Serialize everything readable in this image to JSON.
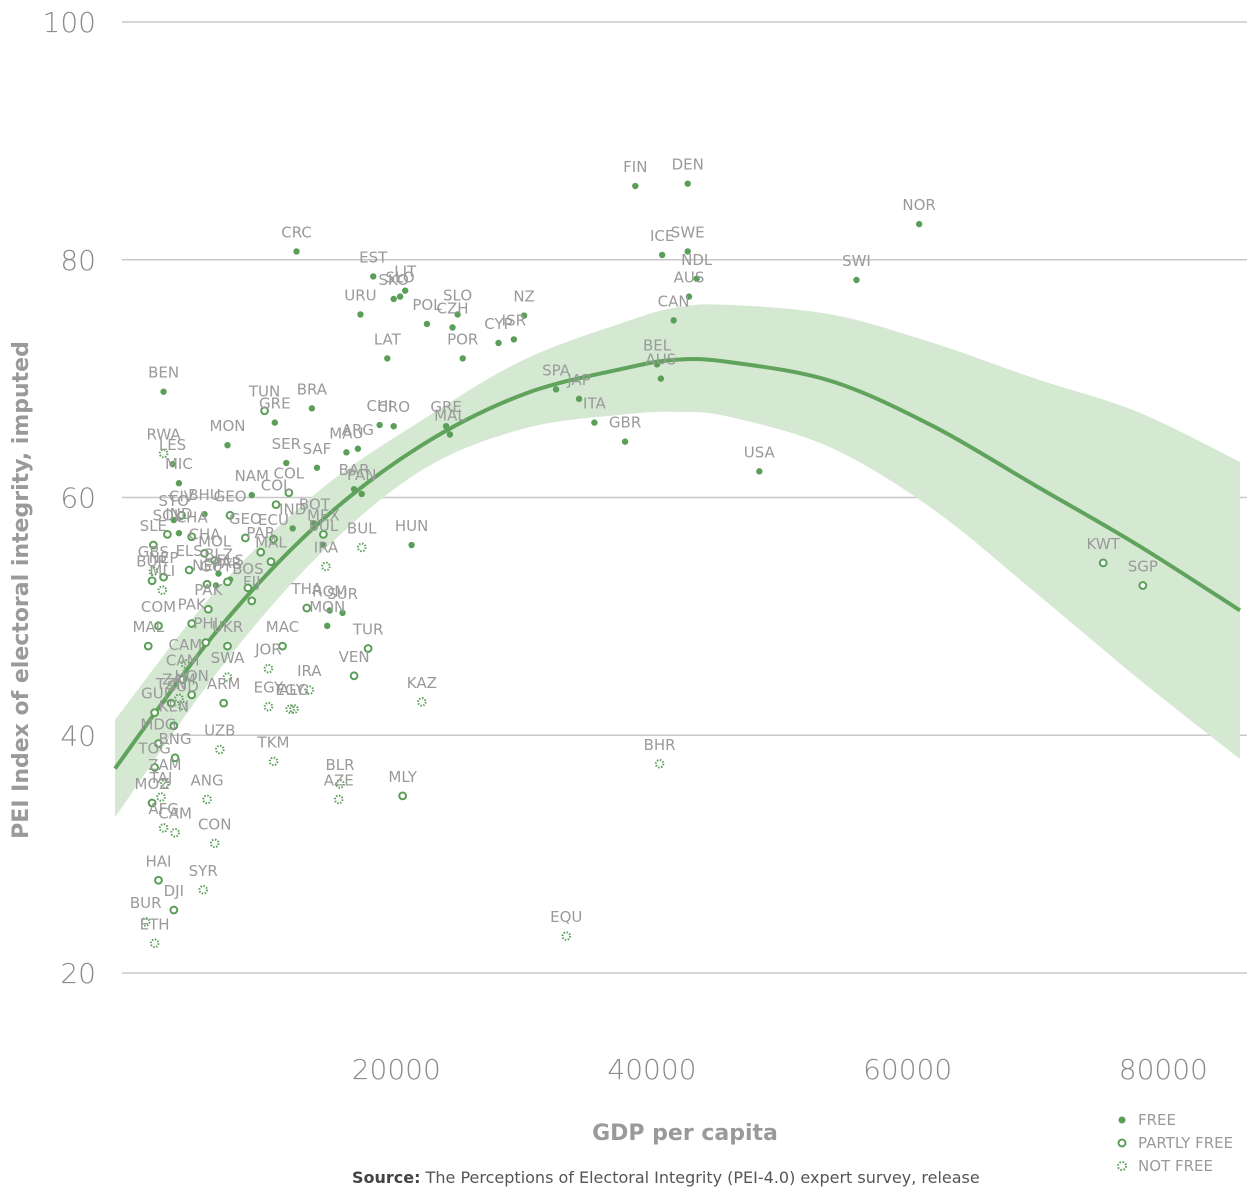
{
  "chart_data": {
    "type": "scatter",
    "title": "",
    "xlabel": "GDP per capita",
    "ylabel": "PEI Index of electoral integrity, imputed",
    "xlim": [
      -2000,
      86000
    ],
    "ylim": [
      20,
      100
    ],
    "x_ticks": [
      "20000",
      "40000",
      "60000",
      "80000"
    ],
    "y_ticks": [
      "20",
      "40",
      "60",
      "80",
      "100"
    ],
    "grid": "horizontal",
    "legend_position": "bottom-right",
    "legend": [
      {
        "name": "FREE",
        "marker": "filled"
      },
      {
        "name": "PARTLY FREE",
        "marker": "ring"
      },
      {
        "name": "NOT FREE",
        "marker": "dotted"
      }
    ],
    "colors": {
      "marker": "#5a9e58",
      "fit_line": "#5fa35c",
      "band": "#d4e8d2",
      "label": "#9a9a9a"
    },
    "fit": {
      "type": "quadratic",
      "x": [
        -2000,
        6000,
        14000,
        22000,
        30000,
        38000,
        42000,
        46000,
        54000,
        62000,
        70000,
        78000,
        86000
      ],
      "y": [
        37.2,
        48.8,
        57.9,
        64.4,
        68.7,
        70.9,
        71.6,
        71.4,
        69.8,
        66.0,
        61.0,
        56.0,
        50.5
      ],
      "lower": [
        33.1,
        45.3,
        55.2,
        62.3,
        65.8,
        67.0,
        67.2,
        66.8,
        64.2,
        59.0,
        52.0,
        44.8,
        38.0
      ],
      "upper": [
        41.3,
        52.3,
        60.6,
        66.5,
        71.6,
        74.8,
        76.0,
        76.2,
        75.4,
        73.0,
        70.0,
        67.2,
        63.0
      ]
    },
    "points": [
      {
        "label": "FIN",
        "x": 38700,
        "y": 86.2,
        "status": "free"
      },
      {
        "label": "DEN",
        "x": 42800,
        "y": 86.4,
        "status": "free"
      },
      {
        "label": "NOR",
        "x": 60900,
        "y": 83.0,
        "status": "free"
      },
      {
        "label": "CRC",
        "x": 12200,
        "y": 80.7,
        "status": "free"
      },
      {
        "label": "ICE",
        "x": 40800,
        "y": 80.4,
        "status": "free"
      },
      {
        "label": "SWE",
        "x": 42800,
        "y": 80.7,
        "status": "free"
      },
      {
        "label": "NDL",
        "x": 43500,
        "y": 78.4,
        "status": "free"
      },
      {
        "label": "SWI",
        "x": 56000,
        "y": 78.3,
        "status": "free"
      },
      {
        "label": "EST",
        "x": 18200,
        "y": 78.6,
        "status": "free"
      },
      {
        "label": "LIT",
        "x": 20700,
        "y": 77.4,
        "status": "free"
      },
      {
        "label": "SKO",
        "x": 19800,
        "y": 76.7,
        "status": "free"
      },
      {
        "label": "SLO",
        "x": 20300,
        "y": 76.9,
        "status": "free"
      },
      {
        "label": "AUS",
        "x": 42900,
        "y": 76.9,
        "status": "free"
      },
      {
        "label": "URU",
        "x": 17200,
        "y": 75.4,
        "status": "free"
      },
      {
        "label": "POL",
        "x": 22400,
        "y": 74.6,
        "status": "free"
      },
      {
        "label": "CZH",
        "x": 24400,
        "y": 74.3,
        "status": "free"
      },
      {
        "label": "NZ",
        "x": 30000,
        "y": 75.3,
        "status": "free"
      },
      {
        "label": "CAN",
        "x": 41700,
        "y": 74.9,
        "status": "free"
      },
      {
        "label": "SLO",
        "x": 24800,
        "y": 75.4,
        "status": "free"
      },
      {
        "label": "CYP",
        "x": 28000,
        "y": 73.0,
        "status": "free"
      },
      {
        "label": "ISR",
        "x": 29200,
        "y": 73.3,
        "status": "free"
      },
      {
        "label": "LAT",
        "x": 19300,
        "y": 71.7,
        "status": "free"
      },
      {
        "label": "POR",
        "x": 25200,
        "y": 71.7,
        "status": "free"
      },
      {
        "label": "BEL",
        "x": 40400,
        "y": 71.2,
        "status": "free"
      },
      {
        "label": "AUS",
        "x": 40700,
        "y": 70.0,
        "status": "free"
      },
      {
        "label": "SPA",
        "x": 32500,
        "y": 69.1,
        "status": "free"
      },
      {
        "label": "JAP",
        "x": 34300,
        "y": 68.3,
        "status": "free"
      },
      {
        "label": "BEN",
        "x": 1800,
        "y": 68.9,
        "status": "free"
      },
      {
        "label": "BRA",
        "x": 13400,
        "y": 67.5,
        "status": "free"
      },
      {
        "label": "TUN",
        "x": 9700,
        "y": 67.3,
        "status": "partly"
      },
      {
        "label": "GRE",
        "x": 10500,
        "y": 66.3,
        "status": "free"
      },
      {
        "label": "CHI",
        "x": 18700,
        "y": 66.1,
        "status": "free"
      },
      {
        "label": "CRO",
        "x": 19800,
        "y": 66.0,
        "status": "free"
      },
      {
        "label": "GRE",
        "x": 23900,
        "y": 66.0,
        "status": "free"
      },
      {
        "label": "ITA",
        "x": 35500,
        "y": 66.3,
        "status": "free"
      },
      {
        "label": "MAL",
        "x": 24200,
        "y": 65.3,
        "status": "free"
      },
      {
        "label": "GBR",
        "x": 37900,
        "y": 64.7,
        "status": "free"
      },
      {
        "label": "MON",
        "x": 6800,
        "y": 64.4,
        "status": "free"
      },
      {
        "label": "MAU",
        "x": 16100,
        "y": 63.8,
        "status": "free"
      },
      {
        "label": "ARG",
        "x": 17000,
        "y": 64.1,
        "status": "free"
      },
      {
        "label": "RWA",
        "x": 1800,
        "y": 63.7,
        "status": "dotted"
      },
      {
        "label": "SER",
        "x": 11400,
        "y": 62.9,
        "status": "free"
      },
      {
        "label": "SAF",
        "x": 13800,
        "y": 62.5,
        "status": "free"
      },
      {
        "label": "LES",
        "x": 2500,
        "y": 62.8,
        "status": "free"
      },
      {
        "label": "USA",
        "x": 48400,
        "y": 62.2,
        "status": "free"
      },
      {
        "label": "MIC",
        "x": 3000,
        "y": 61.2,
        "status": "free"
      },
      {
        "label": "BAR",
        "x": 16700,
        "y": 60.7,
        "status": "free"
      },
      {
        "label": "PAN",
        "x": 17300,
        "y": 60.3,
        "status": "free"
      },
      {
        "label": "NAM",
        "x": 8700,
        "y": 60.2,
        "status": "free"
      },
      {
        "label": "COL",
        "x": 11600,
        "y": 60.4,
        "status": "partly"
      },
      {
        "label": "COL",
        "x": 10600,
        "y": 59.4,
        "status": "partly"
      },
      {
        "label": "BHU",
        "x": 5000,
        "y": 58.6,
        "status": "free"
      },
      {
        "label": "GEO",
        "x": 7000,
        "y": 58.5,
        "status": "partly"
      },
      {
        "label": "CIV",
        "x": 3200,
        "y": 58.5,
        "status": "partly"
      },
      {
        "label": "STO",
        "x": 2600,
        "y": 58.1,
        "status": "free"
      },
      {
        "label": "BOT",
        "x": 13600,
        "y": 57.8,
        "status": "free"
      },
      {
        "label": "IND",
        "x": 3000,
        "y": 57.0,
        "status": "free"
      },
      {
        "label": "IND",
        "x": 11900,
        "y": 57.4,
        "status": "free"
      },
      {
        "label": "SOL",
        "x": 2100,
        "y": 56.9,
        "status": "partly"
      },
      {
        "label": "GEO",
        "x": 8200,
        "y": 56.6,
        "status": "partly"
      },
      {
        "label": "ECU",
        "x": 10400,
        "y": 56.5,
        "status": "partly"
      },
      {
        "label": "MEX",
        "x": 14300,
        "y": 56.9,
        "status": "partly"
      },
      {
        "label": "CHA",
        "x": 4000,
        "y": 56.7,
        "status": "partly"
      },
      {
        "label": "HUN",
        "x": 21200,
        "y": 56.0,
        "status": "free"
      },
      {
        "label": "BUL",
        "x": 14300,
        "y": 56.0,
        "status": "free"
      },
      {
        "label": "BUL",
        "x": 17300,
        "y": 55.8,
        "status": "dotted"
      },
      {
        "label": "SLE",
        "x": 1000,
        "y": 56.0,
        "status": "partly"
      },
      {
        "label": "CHA",
        "x": 5000,
        "y": 55.3,
        "status": "partly"
      },
      {
        "label": "PAR",
        "x": 9400,
        "y": 55.4,
        "status": "partly"
      },
      {
        "label": "MAL",
        "x": 10200,
        "y": 54.6,
        "status": "partly"
      },
      {
        "label": "IRA",
        "x": 14500,
        "y": 54.2,
        "status": "dotted"
      },
      {
        "label": "MOL",
        "x": 5800,
        "y": 54.7,
        "status": "partly"
      },
      {
        "label": "ELS",
        "x": 3800,
        "y": 53.9,
        "status": "partly"
      },
      {
        "label": "BLZ",
        "x": 6100,
        "y": 53.6,
        "status": "free"
      },
      {
        "label": "GBS",
        "x": 1000,
        "y": 53.8,
        "status": "dotted"
      },
      {
        "label": "NEP",
        "x": 1800,
        "y": 53.3,
        "status": "partly"
      },
      {
        "label": "BUR",
        "x": 900,
        "y": 53.0,
        "status": "partly"
      },
      {
        "label": "ELS",
        "x": 7000,
        "y": 53.1,
        "status": "free"
      },
      {
        "label": "PAR",
        "x": 6800,
        "y": 52.9,
        "status": "partly"
      },
      {
        "label": "NEP",
        "x": 5200,
        "y": 52.7,
        "status": "partly"
      },
      {
        "label": "BOS",
        "x": 8400,
        "y": 52.4,
        "status": "partly"
      },
      {
        "label": "MLI",
        "x": 1700,
        "y": 52.2,
        "status": "dotted"
      },
      {
        "label": "GUY",
        "x": 5900,
        "y": 52.6,
        "status": "free"
      },
      {
        "label": "FIJ",
        "x": 8700,
        "y": 51.3,
        "status": "partly"
      },
      {
        "label": "PAK",
        "x": 5300,
        "y": 50.6,
        "status": "partly"
      },
      {
        "label": "THA",
        "x": 13000,
        "y": 50.7,
        "status": "partly"
      },
      {
        "label": "ROM",
        "x": 14800,
        "y": 50.5,
        "status": "free"
      },
      {
        "label": "SUR",
        "x": 15800,
        "y": 50.3,
        "status": "free"
      },
      {
        "label": "MON",
        "x": 14600,
        "y": 49.2,
        "status": "free"
      },
      {
        "label": "PAK",
        "x": 4000,
        "y": 49.4,
        "status": "partly"
      },
      {
        "label": "COM",
        "x": 1400,
        "y": 49.2,
        "status": "partly"
      },
      {
        "label": "MAL",
        "x": 600,
        "y": 47.5,
        "status": "partly"
      },
      {
        "label": "PHI",
        "x": 5100,
        "y": 47.8,
        "status": "partly"
      },
      {
        "label": "UKR",
        "x": 6800,
        "y": 47.5,
        "status": "partly"
      },
      {
        "label": "MAC",
        "x": 11100,
        "y": 47.5,
        "status": "partly"
      },
      {
        "label": "TUR",
        "x": 17800,
        "y": 47.3,
        "status": "partly"
      },
      {
        "label": "CAM",
        "x": 3500,
        "y": 46.0,
        "status": "dotted"
      },
      {
        "label": "JOR",
        "x": 10000,
        "y": 45.6,
        "status": "dotted"
      },
      {
        "label": "VEN",
        "x": 16700,
        "y": 45.0,
        "status": "partly"
      },
      {
        "label": "SWA",
        "x": 6800,
        "y": 44.9,
        "status": "dotted"
      },
      {
        "label": "CAM",
        "x": 3300,
        "y": 44.7,
        "status": "partly"
      },
      {
        "label": "IRA",
        "x": 13200,
        "y": 43.8,
        "status": "dotted"
      },
      {
        "label": "HON",
        "x": 4000,
        "y": 43.4,
        "status": "partly"
      },
      {
        "label": "ZAM",
        "x": 3000,
        "y": 43.1,
        "status": "dotted"
      },
      {
        "label": "TZN",
        "x": 2400,
        "y": 42.7,
        "status": "partly"
      },
      {
        "label": "ARM",
        "x": 6500,
        "y": 42.7,
        "status": "partly"
      },
      {
        "label": "KAZ",
        "x": 22000,
        "y": 42.8,
        "status": "dotted"
      },
      {
        "label": "EGY",
        "x": 10000,
        "y": 42.4,
        "status": "dotted"
      },
      {
        "label": "EGY",
        "x": 11700,
        "y": 42.2,
        "status": "dotted"
      },
      {
        "label": "ALG",
        "x": 12000,
        "y": 42.2,
        "status": "dotted"
      },
      {
        "label": "GUI",
        "x": 1100,
        "y": 41.9,
        "status": "partly"
      },
      {
        "label": "SUD",
        "x": 3300,
        "y": 42.5,
        "status": "dotted"
      },
      {
        "label": "KEN",
        "x": 2600,
        "y": 40.8,
        "status": "partly"
      },
      {
        "label": "MDG",
        "x": 1400,
        "y": 39.3,
        "status": "partly"
      },
      {
        "label": "UZB",
        "x": 6200,
        "y": 38.8,
        "status": "dotted"
      },
      {
        "label": "BNG",
        "x": 2700,
        "y": 38.1,
        "status": "partly"
      },
      {
        "label": "TKM",
        "x": 10400,
        "y": 37.8,
        "status": "dotted"
      },
      {
        "label": "BHR",
        "x": 40600,
        "y": 37.6,
        "status": "dotted"
      },
      {
        "label": "TOG",
        "x": 1100,
        "y": 37.3,
        "status": "partly"
      },
      {
        "label": "ZAM",
        "x": 1900,
        "y": 35.9,
        "status": "dotted"
      },
      {
        "label": "BLR",
        "x": 15600,
        "y": 35.9,
        "status": "dotted"
      },
      {
        "label": "MLY",
        "x": 20500,
        "y": 34.9,
        "status": "partly"
      },
      {
        "label": "ANG",
        "x": 5200,
        "y": 34.6,
        "status": "dotted"
      },
      {
        "label": "TAJ",
        "x": 1600,
        "y": 34.8,
        "status": "dotted"
      },
      {
        "label": "MOZ",
        "x": 900,
        "y": 34.3,
        "status": "partly"
      },
      {
        "label": "AZE",
        "x": 15500,
        "y": 34.6,
        "status": "dotted"
      },
      {
        "label": "AFG",
        "x": 1800,
        "y": 32.2,
        "status": "dotted"
      },
      {
        "label": "CAM",
        "x": 2700,
        "y": 31.8,
        "status": "dotted"
      },
      {
        "label": "CON",
        "x": 5800,
        "y": 30.9,
        "status": "dotted"
      },
      {
        "label": "HAI",
        "x": 1400,
        "y": 27.8,
        "status": "partly"
      },
      {
        "label": "SYR",
        "x": 4900,
        "y": 27.0,
        "status": "dotted"
      },
      {
        "label": "DJI",
        "x": 2600,
        "y": 25.3,
        "status": "partly"
      },
      {
        "label": "BUR",
        "x": 400,
        "y": 24.3,
        "status": "dotted"
      },
      {
        "label": "EQU",
        "x": 33300,
        "y": 23.1,
        "status": "dotted"
      },
      {
        "label": "ETH",
        "x": 1100,
        "y": 22.5,
        "status": "dotted"
      },
      {
        "label": "KWT",
        "x": 75300,
        "y": 54.5,
        "status": "partly"
      },
      {
        "label": "SGP",
        "x": 78400,
        "y": 52.6,
        "status": "partly"
      }
    ]
  },
  "source": {
    "prefix": "Source:",
    "text": "The Perceptions of Electoral Integrity (PEI-4.0) expert survey, release"
  }
}
